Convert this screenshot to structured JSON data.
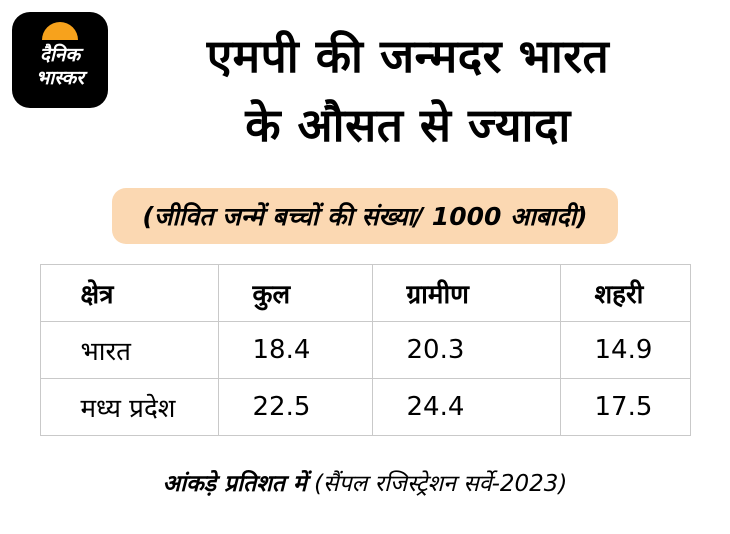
{
  "brand": {
    "logo_line1": "दैनिक",
    "logo_line2": "भास्कर"
  },
  "header": {
    "title_line1": "एमपी की जन्मदर भारत",
    "title_line2": "के औसत से ज्यादा",
    "subtitle": "(जीवित जन्में बच्चों की संख्या/ 1000 आबादी)"
  },
  "chart_data": {
    "type": "table",
    "title": "एमपी की जन्मदर भारत के औसत से ज्यादा",
    "subtitle": "(जीवित जन्में बच्चों की संख्या/ 1000 आबादी)",
    "columns": [
      "क्षेत्र",
      "कुल",
      "ग्रामीण",
      "शहरी"
    ],
    "rows": [
      {
        "region": "भारत",
        "total": "18.4",
        "rural": "20.3",
        "urban": "14.9"
      },
      {
        "region": "मध्य प्रदेश",
        "total": "22.5",
        "rural": "24.4",
        "urban": "17.5"
      }
    ]
  },
  "footer": {
    "bold_text": "आंकड़े प्रतिशत में",
    "regular_text": "(सैंपल रजिस्ट्रेशन सर्वे-2023)"
  },
  "colors": {
    "background": "#ffffff",
    "text": "#000000",
    "pill_background": "#fbd8b2",
    "logo_background": "#000000",
    "logo_sun": "#f7a21c",
    "table_border": "#c9c9c9"
  }
}
